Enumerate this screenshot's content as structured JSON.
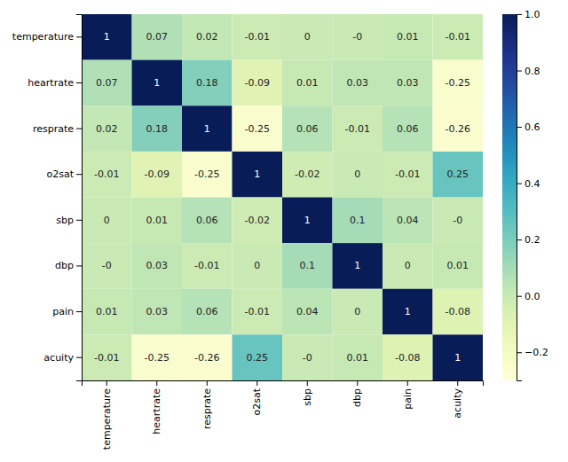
{
  "chart_data": {
    "type": "heatmap",
    "categories": [
      "temperature",
      "heartrate",
      "resprate",
      "o2sat",
      "sbp",
      "dbp",
      "pain",
      "acuity"
    ],
    "values": [
      [
        1,
        0.07,
        0.02,
        -0.01,
        0,
        -0.0,
        0.01,
        -0.01
      ],
      [
        0.07,
        1,
        0.18,
        -0.09,
        0.01,
        0.03,
        0.03,
        -0.25
      ],
      [
        0.02,
        0.18,
        1,
        -0.25,
        0.06,
        -0.01,
        0.06,
        -0.26
      ],
      [
        -0.01,
        -0.09,
        -0.25,
        1,
        -0.02,
        0,
        -0.01,
        0.25
      ],
      [
        0,
        0.01,
        0.06,
        -0.02,
        1,
        0.1,
        0.04,
        -0.0
      ],
      [
        -0.0,
        0.03,
        -0.01,
        0,
        0.1,
        1,
        0,
        0.01
      ],
      [
        0.01,
        0.03,
        0.06,
        -0.01,
        0.04,
        0,
        1,
        -0.08
      ],
      [
        -0.01,
        -0.25,
        -0.26,
        0.25,
        -0.0,
        0.01,
        -0.08,
        1
      ]
    ],
    "value_labels": [
      [
        "1",
        "0.07",
        "0.02",
        "-0.01",
        "0",
        "-0",
        "0.01",
        "-0.01"
      ],
      [
        "0.07",
        "1",
        "0.18",
        "-0.09",
        "0.01",
        "0.03",
        "0.03",
        "-0.25"
      ],
      [
        "0.02",
        "0.18",
        "1",
        "-0.25",
        "0.06",
        "-0.01",
        "0.06",
        "-0.26"
      ],
      [
        "-0.01",
        "-0.09",
        "-0.25",
        "1",
        "-0.02",
        "0",
        "-0.01",
        "0.25"
      ],
      [
        "0",
        "0.01",
        "0.06",
        "-0.02",
        "1",
        "0.1",
        "0.04",
        "-0"
      ],
      [
        "-0",
        "0.03",
        "-0.01",
        "0",
        "0.1",
        "1",
        "0",
        "0.01"
      ],
      [
        "0.01",
        "0.03",
        "0.06",
        "-0.01",
        "0.04",
        "0",
        "1",
        "-0.08"
      ],
      [
        "-0.01",
        "-0.25",
        "-0.26",
        "0.25",
        "-0",
        "0.01",
        "-0.08",
        "1"
      ]
    ],
    "data_labels": true,
    "color": "YlGnBu",
    "colorbar_range": [
      -0.3,
      1.0
    ],
    "colorbar_ticks": [
      {
        "value": -0.2,
        "label": "−0.2"
      },
      {
        "value": 0.0,
        "label": "0.0"
      },
      0.2,
      0.4,
      0.6,
      0.8,
      {
        "value": 1.0,
        "label": "1.0"
      }
    ]
  }
}
